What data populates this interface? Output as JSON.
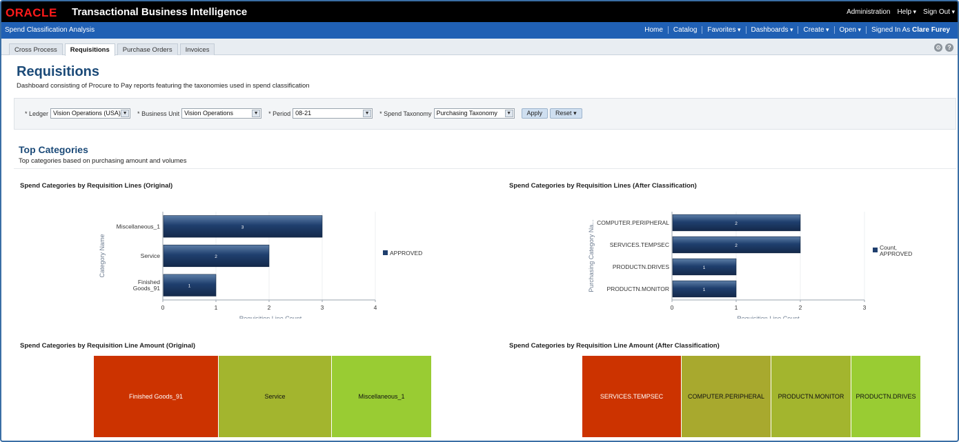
{
  "header": {
    "logo": "ORACLE",
    "app_title": "Transactional Business Intelligence",
    "links": [
      "Administration",
      "Help",
      "Sign Out"
    ]
  },
  "navbar": {
    "dashboard_name": "Spend Classification Analysis",
    "links": [
      "Home",
      "Catalog",
      "Favorites",
      "Dashboards",
      "Create",
      "Open"
    ],
    "signed_in_label": "Signed In As",
    "user": "Clare Furey"
  },
  "tabs": [
    {
      "label": "Cross Process",
      "active": false
    },
    {
      "label": "Requisitions",
      "active": true
    },
    {
      "label": "Purchase Orders",
      "active": false
    },
    {
      "label": "Invoices",
      "active": false
    }
  ],
  "page": {
    "title": "Requisitions",
    "subtitle": "Dashboard consisting of Procure to Pay reports featuring the taxonomies used in spend classification"
  },
  "prompts": {
    "ledger_label": "Ledger",
    "ledger_value": "Vision Operations (USA)",
    "bu_label": "Business Unit",
    "bu_value": "Vision Operations",
    "period_label": "Period",
    "period_value": "08-21",
    "taxonomy_label": "Spend Taxonomy",
    "taxonomy_value": "Purchasing Taxonomy",
    "apply_label": "Apply",
    "reset_label": "Reset"
  },
  "section": {
    "title": "Top Categories",
    "subtitle": "Top categories based on purchasing amount and volumes"
  },
  "colors": {
    "bar": "#1f3f6e",
    "red_tile": "#cc3300",
    "olive_tile": "#a3b52e",
    "green_tile": "#99cc33",
    "olive2_tile": "#a8a92e"
  },
  "chart_data": [
    {
      "type": "bar",
      "orientation": "horizontal",
      "title": "Spend Categories by Requisition Lines (Original)",
      "categories": [
        "Miscellaneous_1",
        "Service",
        "Finished Goods_91"
      ],
      "series": [
        {
          "name": "APPROVED",
          "values": [
            3,
            2,
            1
          ]
        }
      ],
      "xlabel": "Requisition Line Count",
      "ylabel": "Category Name",
      "xlim": [
        0,
        4
      ],
      "ticks": [
        "0",
        "1",
        "2",
        "3",
        "4"
      ],
      "legend": "right"
    },
    {
      "type": "bar",
      "orientation": "horizontal",
      "title": "Spend Categories by Requisition Lines (After Classification)",
      "categories": [
        "COMPUTER.PERIPHERAL",
        "SERVICES.TEMPSEC",
        "PRODUCTN.DRIVES",
        "PRODUCTN.MONITOR"
      ],
      "series": [
        {
          "name": "Count, APPROVED",
          "values": [
            2,
            2,
            1,
            1
          ]
        }
      ],
      "xlabel": "Requisition Line Count",
      "ylabel": "Purchasing Category Na...",
      "xlim": [
        0,
        3
      ],
      "ticks": [
        "0",
        "1",
        "2",
        "3"
      ],
      "legend": "right"
    },
    {
      "type": "treemap",
      "title": "Spend Categories by Requisition Line Amount (Original)",
      "tiles": [
        "Finished Goods_91",
        "Service",
        "Miscellaneous_1"
      ]
    },
    {
      "type": "treemap",
      "title": "Spend Categories by Requisition Line Amount (After Classification)",
      "tiles": [
        "SERVICES.TEMPSEC",
        "COMPUTER.PERIPHERAL",
        "PRODUCTN.MONITOR",
        "PRODUCTN.DRIVES"
      ]
    }
  ]
}
